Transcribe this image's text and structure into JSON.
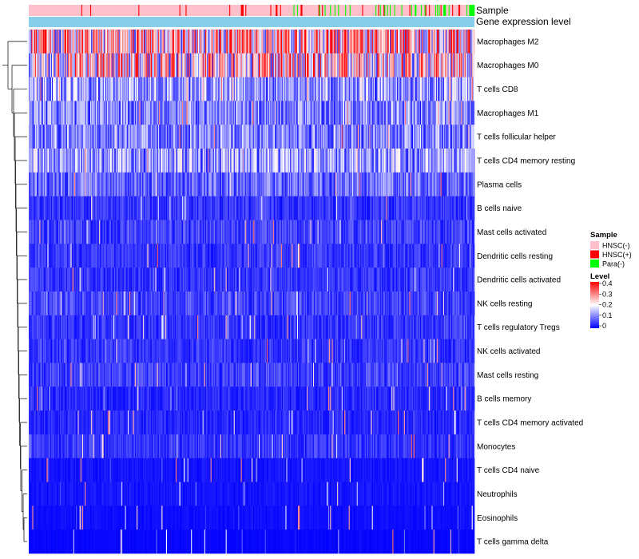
{
  "chart_data": {
    "type": "heatmap",
    "title": "",
    "annotation_tracks": [
      {
        "name": "Sample",
        "label": "Sample"
      },
      {
        "name": "Gene expression level",
        "label": "Gene expression level"
      }
    ],
    "sample_groups": [
      {
        "label": "HNSC(-)",
        "color": "#ffc0cb"
      },
      {
        "label": "HNSC(+)",
        "color": "#ff0000"
      },
      {
        "label": "Para(-)",
        "color": "#00ff00"
      }
    ],
    "gene_expression_color": "#87ceeb",
    "n_samples": 500,
    "rows": [
      {
        "label": "Macrophages M2",
        "mean": 0.24
      },
      {
        "label": "Macrophages M0",
        "mean": 0.22
      },
      {
        "label": "T cells CD8",
        "mean": 0.12
      },
      {
        "label": "Macrophages M1",
        "mean": 0.1
      },
      {
        "label": "T cells follicular helper",
        "mean": 0.1
      },
      {
        "label": "T cells CD4 memory resting",
        "mean": 0.12
      },
      {
        "label": "Plasma cells",
        "mean": 0.08
      },
      {
        "label": "B cells naive",
        "mean": 0.04
      },
      {
        "label": "Mast cells activated",
        "mean": 0.05
      },
      {
        "label": "Dendritic cells resting",
        "mean": 0.04
      },
      {
        "label": "Dendritic cells activated",
        "mean": 0.04
      },
      {
        "label": "NK cells resting",
        "mean": 0.05
      },
      {
        "label": "T cells regulatory  Tregs",
        "mean": 0.04
      },
      {
        "label": "NK cells activated",
        "mean": 0.04
      },
      {
        "label": "Mast cells resting",
        "mean": 0.05
      },
      {
        "label": "B cells memory",
        "mean": 0.03
      },
      {
        "label": "T cells CD4 memory activated",
        "mean": 0.03
      },
      {
        "label": "Monocytes",
        "mean": 0.04
      },
      {
        "label": "T cells CD4 naive",
        "mean": 0.015
      },
      {
        "label": "Neutrophils",
        "mean": 0.015
      },
      {
        "label": "Eosinophils",
        "mean": 0.01
      },
      {
        "label": "T cells gamma delta",
        "mean": 0.005
      }
    ],
    "color_scale": {
      "title": "Level",
      "min": 0,
      "max": 0.4,
      "ticks": [
        "0.4",
        "0.3",
        "0.2",
        "0.1",
        "0"
      ],
      "tick_values": [
        0.4,
        0.3,
        0.2,
        0.1,
        0
      ],
      "low_color": "#0000ff",
      "mid_color": "#ffffff",
      "high_color": "#ff0000",
      "mid_value": 0.2
    },
    "legend": {
      "sample_title": "Sample",
      "level_title": "Level",
      "placement": "right"
    },
    "dendrogram": "rows"
  }
}
